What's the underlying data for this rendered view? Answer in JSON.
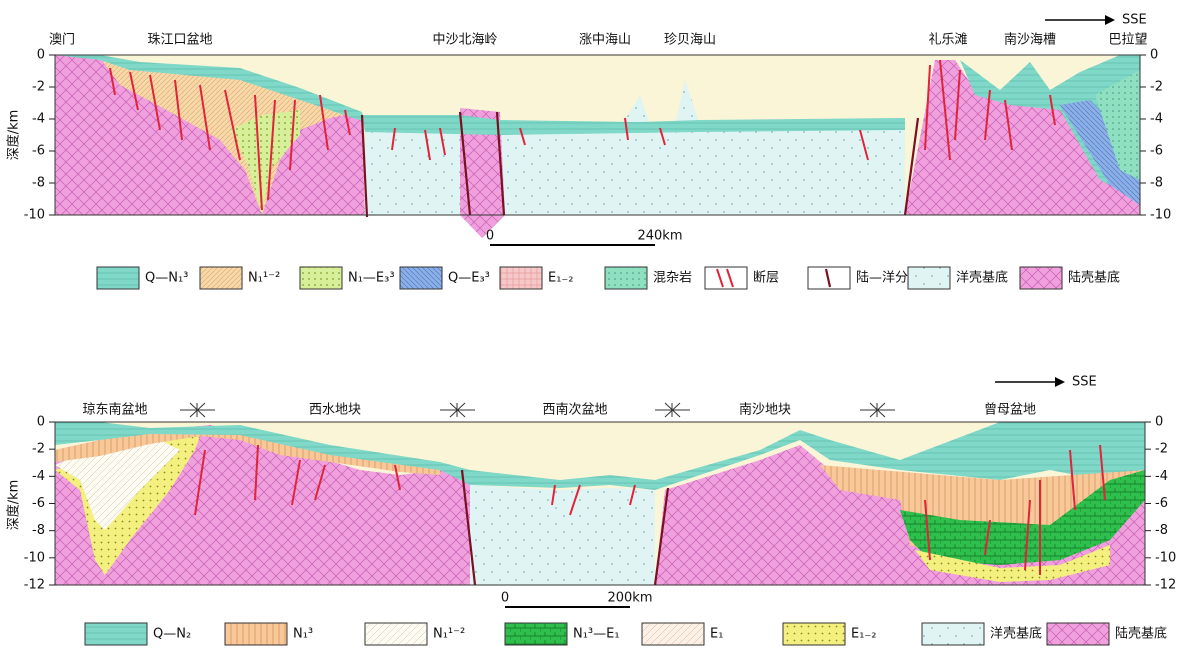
{
  "top": {
    "direction": "SSE",
    "places": [
      "澳门",
      "珠江口盆地",
      "中沙北海岭",
      "涨中海山",
      "珍贝海山",
      "礼乐滩",
      "南沙海槽",
      "巴拉望"
    ],
    "axis_title": "深度/km",
    "yticks": [
      0,
      -2,
      -4,
      -6,
      -8,
      -10
    ],
    "scale": [
      "0",
      "240km"
    ],
    "legend": [
      "Q—N₁³",
      "N₁¹⁻²",
      "N₁—E₃³",
      "Q—E₃³",
      "E₁₋₂",
      "混杂岩",
      "断层",
      "陆—洋分界线",
      "洋壳基底",
      "陆壳基底"
    ]
  },
  "bottom": {
    "direction": "SSE",
    "places": [
      "琼东南盆地",
      "西水地块",
      "西南次盆地",
      "南沙地块",
      "曾母盆地"
    ],
    "axis_title": "深度/km",
    "yticks": [
      0,
      -2,
      -4,
      -6,
      -8,
      -10,
      -12
    ],
    "scale": [
      "0",
      "200km"
    ],
    "legend": [
      "Q—N₂",
      "N₁³",
      "N₁¹⁻²",
      "N₁³—E₁",
      "E₁",
      "E₁₋₂",
      "洋壳基底",
      "陆壳基底"
    ]
  }
}
